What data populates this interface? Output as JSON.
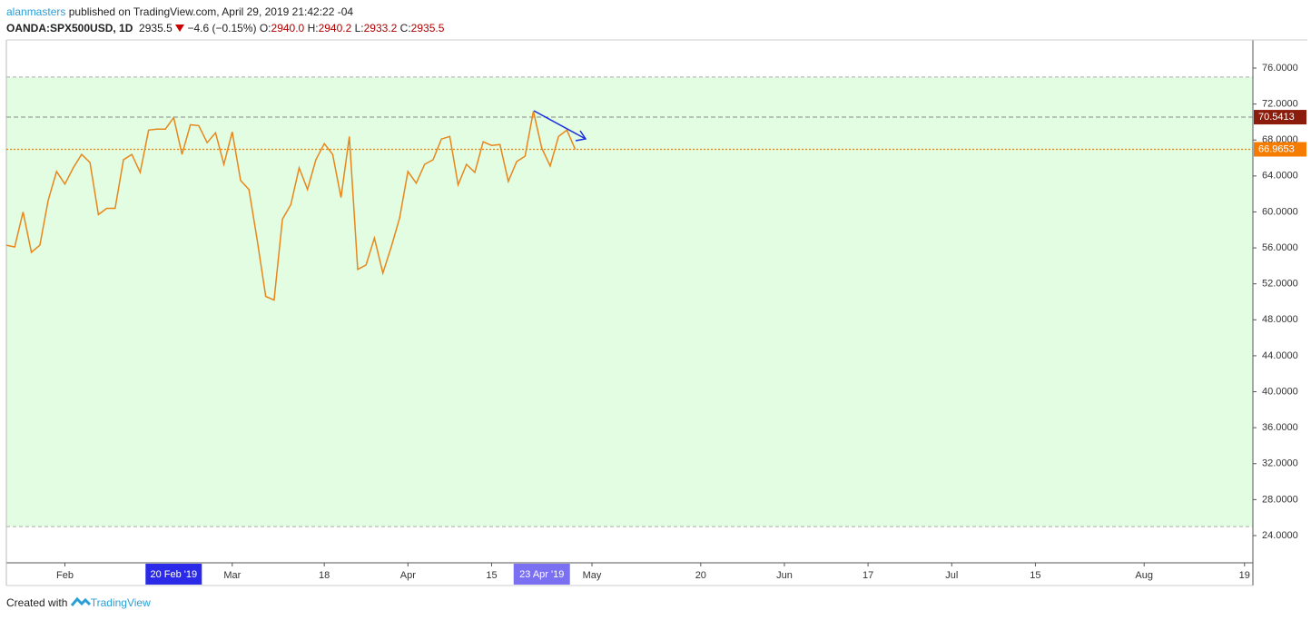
{
  "header": {
    "author": "alanmasters",
    "published": "published on TradingView.com, April 29, 2019 21:42:22 -04",
    "symbol": "OANDA:SPX500USD, 1D",
    "price": "2935.5",
    "change": "−4.6 (−0.15%)",
    "ohlc": [
      {
        "key": "O:",
        "value": "2940.0"
      },
      {
        "key": "H:",
        "value": "2940.2"
      },
      {
        "key": "L:",
        "value": "2933.2"
      },
      {
        "key": "C:",
        "value": "2935.5"
      }
    ]
  },
  "chart_data": {
    "type": "line",
    "color": "#e8861a",
    "x": [
      "2019-01-23",
      "2019-01-24",
      "2019-01-25",
      "2019-01-28",
      "2019-01-29",
      "2019-01-30",
      "2019-01-31",
      "2019-02-01",
      "2019-02-04",
      "2019-02-05",
      "2019-02-06",
      "2019-02-07",
      "2019-02-08",
      "2019-02-11",
      "2019-02-12",
      "2019-02-13",
      "2019-02-14",
      "2019-02-15",
      "2019-02-18",
      "2019-02-19",
      "2019-02-20",
      "2019-02-21",
      "2019-02-22",
      "2019-02-25",
      "2019-02-26",
      "2019-02-27",
      "2019-02-28",
      "2019-03-01",
      "2019-03-04",
      "2019-03-05",
      "2019-03-06",
      "2019-03-07",
      "2019-03-08",
      "2019-03-11",
      "2019-03-12",
      "2019-03-13",
      "2019-03-14",
      "2019-03-15",
      "2019-03-18",
      "2019-03-19",
      "2019-03-20",
      "2019-03-21",
      "2019-03-22",
      "2019-03-25",
      "2019-03-26",
      "2019-03-27",
      "2019-03-28",
      "2019-03-29",
      "2019-04-01",
      "2019-04-02",
      "2019-04-03",
      "2019-04-04",
      "2019-04-05",
      "2019-04-08",
      "2019-04-09",
      "2019-04-10",
      "2019-04-11",
      "2019-04-12",
      "2019-04-15",
      "2019-04-16",
      "2019-04-17",
      "2019-04-18",
      "2019-04-19",
      "2019-04-22",
      "2019-04-23",
      "2019-04-24",
      "2019-04-25",
      "2019-04-26",
      "2019-04-29"
    ],
    "values": [
      56.3,
      56.1,
      60,
      55.5,
      56.3,
      61.3,
      64.5,
      63.1,
      64.9,
      66.4,
      65.5,
      59.7,
      60.4,
      60.4,
      65.8,
      66.4,
      64.4,
      69.1,
      69.2,
      69.2,
      70.5,
      66.4,
      69.7,
      69.6,
      67.7,
      68.8,
      65.3,
      68.9,
      63.5,
      62.5,
      56.8,
      50.6,
      50.2,
      59.2,
      60.8,
      64.9,
      62.5,
      65.8,
      67.6,
      66.4,
      61.6,
      68.4,
      53.6,
      54.1,
      57.1,
      53.2,
      56.1,
      59.3,
      64.5,
      63.2,
      65.3,
      65.8,
      68.1,
      68.4,
      63,
      65.3,
      64.4,
      67.8,
      67.4,
      67.5,
      63.4,
      65.6,
      66.2,
      71.2,
      67.1,
      65.1,
      68.4,
      69.1,
      66.9653
    ],
    "xlim": [
      "2019-01-23",
      "2019-08-20"
    ],
    "xticks": [
      {
        "value": "2019-02-01",
        "label": "Feb"
      },
      {
        "value": "2019-03-01",
        "label": "Mar"
      },
      {
        "value": "2019-03-18",
        "label": "18"
      },
      {
        "value": "2019-04-01",
        "label": "Apr"
      },
      {
        "value": "2019-04-15",
        "label": "15"
      },
      {
        "value": "2019-05-01",
        "label": "May"
      },
      {
        "value": "2019-05-20",
        "label": "20"
      },
      {
        "value": "2019-06-03",
        "label": "Jun"
      },
      {
        "value": "2019-06-17",
        "label": "17"
      },
      {
        "value": "2019-07-01",
        "label": "Jul"
      },
      {
        "value": "2019-07-15",
        "label": "15"
      },
      {
        "value": "2019-08-01",
        "label": "Aug"
      },
      {
        "value": "2019-08-19",
        "label": "19"
      }
    ],
    "ylim": [
      20.97,
      79.13
    ],
    "yticks": [
      {
        "value": 24,
        "label": "24.0000"
      },
      {
        "value": 28,
        "label": "28.0000"
      },
      {
        "value": 32,
        "label": "32.0000"
      },
      {
        "value": 36,
        "label": "36.0000"
      },
      {
        "value": 40,
        "label": "40.0000"
      },
      {
        "value": 44,
        "label": "44.0000"
      },
      {
        "value": 48,
        "label": "48.0000"
      },
      {
        "value": 52,
        "label": "52.0000"
      },
      {
        "value": 56,
        "label": "56.0000"
      },
      {
        "value": 60,
        "label": "60.0000"
      },
      {
        "value": 64,
        "label": "64.0000"
      },
      {
        "value": 68,
        "label": "68.0000"
      },
      {
        "value": 72,
        "label": "72.0000"
      },
      {
        "value": 76,
        "label": "76.0000"
      }
    ],
    "band": [
      25,
      75
    ],
    "band_color": "#e3fde3",
    "hline": {
      "value": 70.5413,
      "color": "#8b1c0c"
    },
    "price_color": "#f57c00",
    "highlights": [
      {
        "x": "2019-02-20",
        "label": "20 Feb '19",
        "color": "#2a2ae8"
      },
      {
        "x": "2019-04-23",
        "label": "23 Apr '19",
        "color": "#7b6ff2"
      }
    ]
  },
  "footer": {
    "text": "Created with",
    "brand": "TradingView"
  }
}
